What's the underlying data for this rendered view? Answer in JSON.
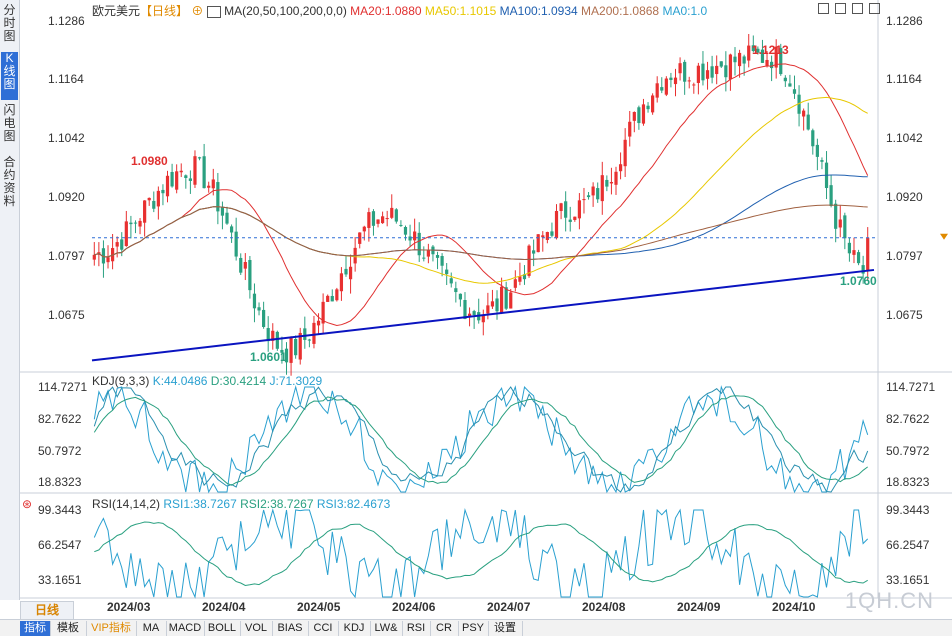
{
  "sidebar": {
    "tabs": [
      "分时图",
      "K线图",
      "闪电图",
      "合约资料"
    ],
    "active": 1
  },
  "header": {
    "symbol": "欧元美元",
    "period": "【日线】",
    "ma_label": "MA(20,50,100,200,0,0)",
    "ma20": "MA20:1.0880",
    "ma50": "MA50:1.1015",
    "ma100": "MA100:1.0934",
    "ma200": "MA200:1.0868",
    "ma0": "MA0:1.0"
  },
  "colors": {
    "ma20": "#e03030",
    "ma50": "#e8c800",
    "ma100": "#2060b0",
    "ma200": "#a06040",
    "up": "#e83030",
    "down": "#2aa080",
    "trend": "#0a14c0",
    "accent": "#2f6fd6"
  },
  "price_axis": {
    "ticks": [
      "1.1286",
      "1.1164",
      "1.1042",
      "1.0920",
      "1.0797",
      "1.0675"
    ],
    "min": 1.056,
    "max": 1.13
  },
  "annotations": {
    "high": "1.1213",
    "high_prev": "1.0980",
    "low": "1.0601",
    "low_recent": "1.0760"
  },
  "kdj": {
    "label": "KDJ(9,3,3)",
    "k": "K:44.0486",
    "d": "D:30.4214",
    "j": "J:71.3029",
    "ticks": [
      "114.7271",
      "82.7622",
      "50.7972",
      "18.8323"
    ]
  },
  "rsi": {
    "label": "RSI(14,14,2)",
    "rsi1": "RSI1:38.7267",
    "rsi2": "RSI2:38.7267",
    "rsi3": "RSI3:82.4673",
    "ticks": [
      "99.3443",
      "66.2547",
      "33.1651"
    ]
  },
  "x_labels": [
    "2024/03",
    "2024/04",
    "2024/05",
    "2024/06",
    "2024/07",
    "2024/08",
    "2024/09",
    "2024/10"
  ],
  "period_label": "日线",
  "toolbar": [
    "指标",
    "模板",
    "VIP指标",
    "MA",
    "MACD",
    "BOLL",
    "VOL",
    "BIAS",
    "CCI",
    "KDJ",
    "LW&",
    "RSI",
    "CR",
    "PSY",
    "设置"
  ],
  "watermark": "1QH.CN",
  "chart_data": {
    "type": "candlestick",
    "x": [
      "2024/02",
      "2024/03",
      "2024/04",
      "2024/05",
      "2024/06",
      "2024/07",
      "2024/08",
      "2024/09",
      "2024/10"
    ],
    "anchors": [
      {
        "date": "2024/02",
        "price": 1.08
      },
      {
        "date": "2024/03",
        "price": 1.098
      },
      {
        "date": "2024/04",
        "price": 1.0601
      },
      {
        "date": "2024/05",
        "price": 1.088
      },
      {
        "date": "2024/06",
        "price": 1.068
      },
      {
        "date": "2024/07",
        "price": 1.09
      },
      {
        "date": "2024/08",
        "price": 1.118
      },
      {
        "date": "2024/09",
        "price": 1.1213
      },
      {
        "date": "2024/10",
        "price": 1.076
      }
    ],
    "last": 1.0835
  }
}
